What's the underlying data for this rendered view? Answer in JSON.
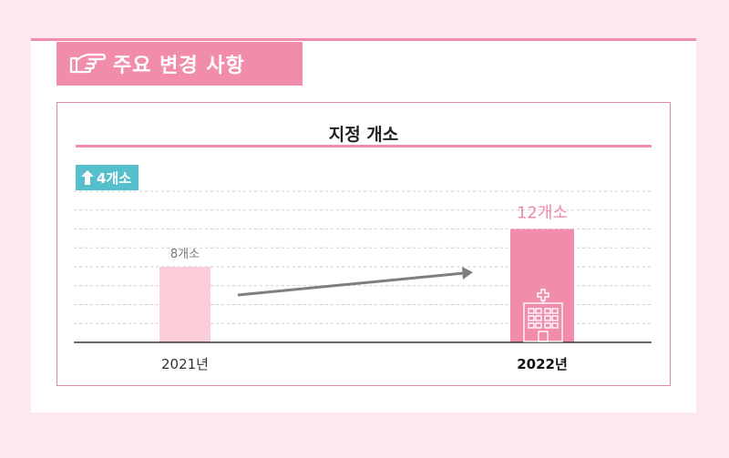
{
  "header": {
    "title": "주요 변경 사항",
    "icon": "pointing-hand-icon"
  },
  "chart_data": {
    "type": "bar",
    "title": "지정 개소",
    "categories": [
      "2021년",
      "2022년"
    ],
    "values": [
      8,
      12
    ],
    "data_labels": [
      "8개소",
      "12개소"
    ],
    "ylim": [
      0,
      16
    ],
    "grid": true,
    "increase_badge": "4개소",
    "colors": {
      "bar_2021": "#fbcdd9",
      "bar_2022": "#f28cab",
      "arrow": "#7f7f7f",
      "badge": "#55c0cc",
      "accent": "#f28cab"
    },
    "icons": [
      "up-arrow-icon",
      "hospital-icon",
      "trend-arrow-icon"
    ]
  }
}
